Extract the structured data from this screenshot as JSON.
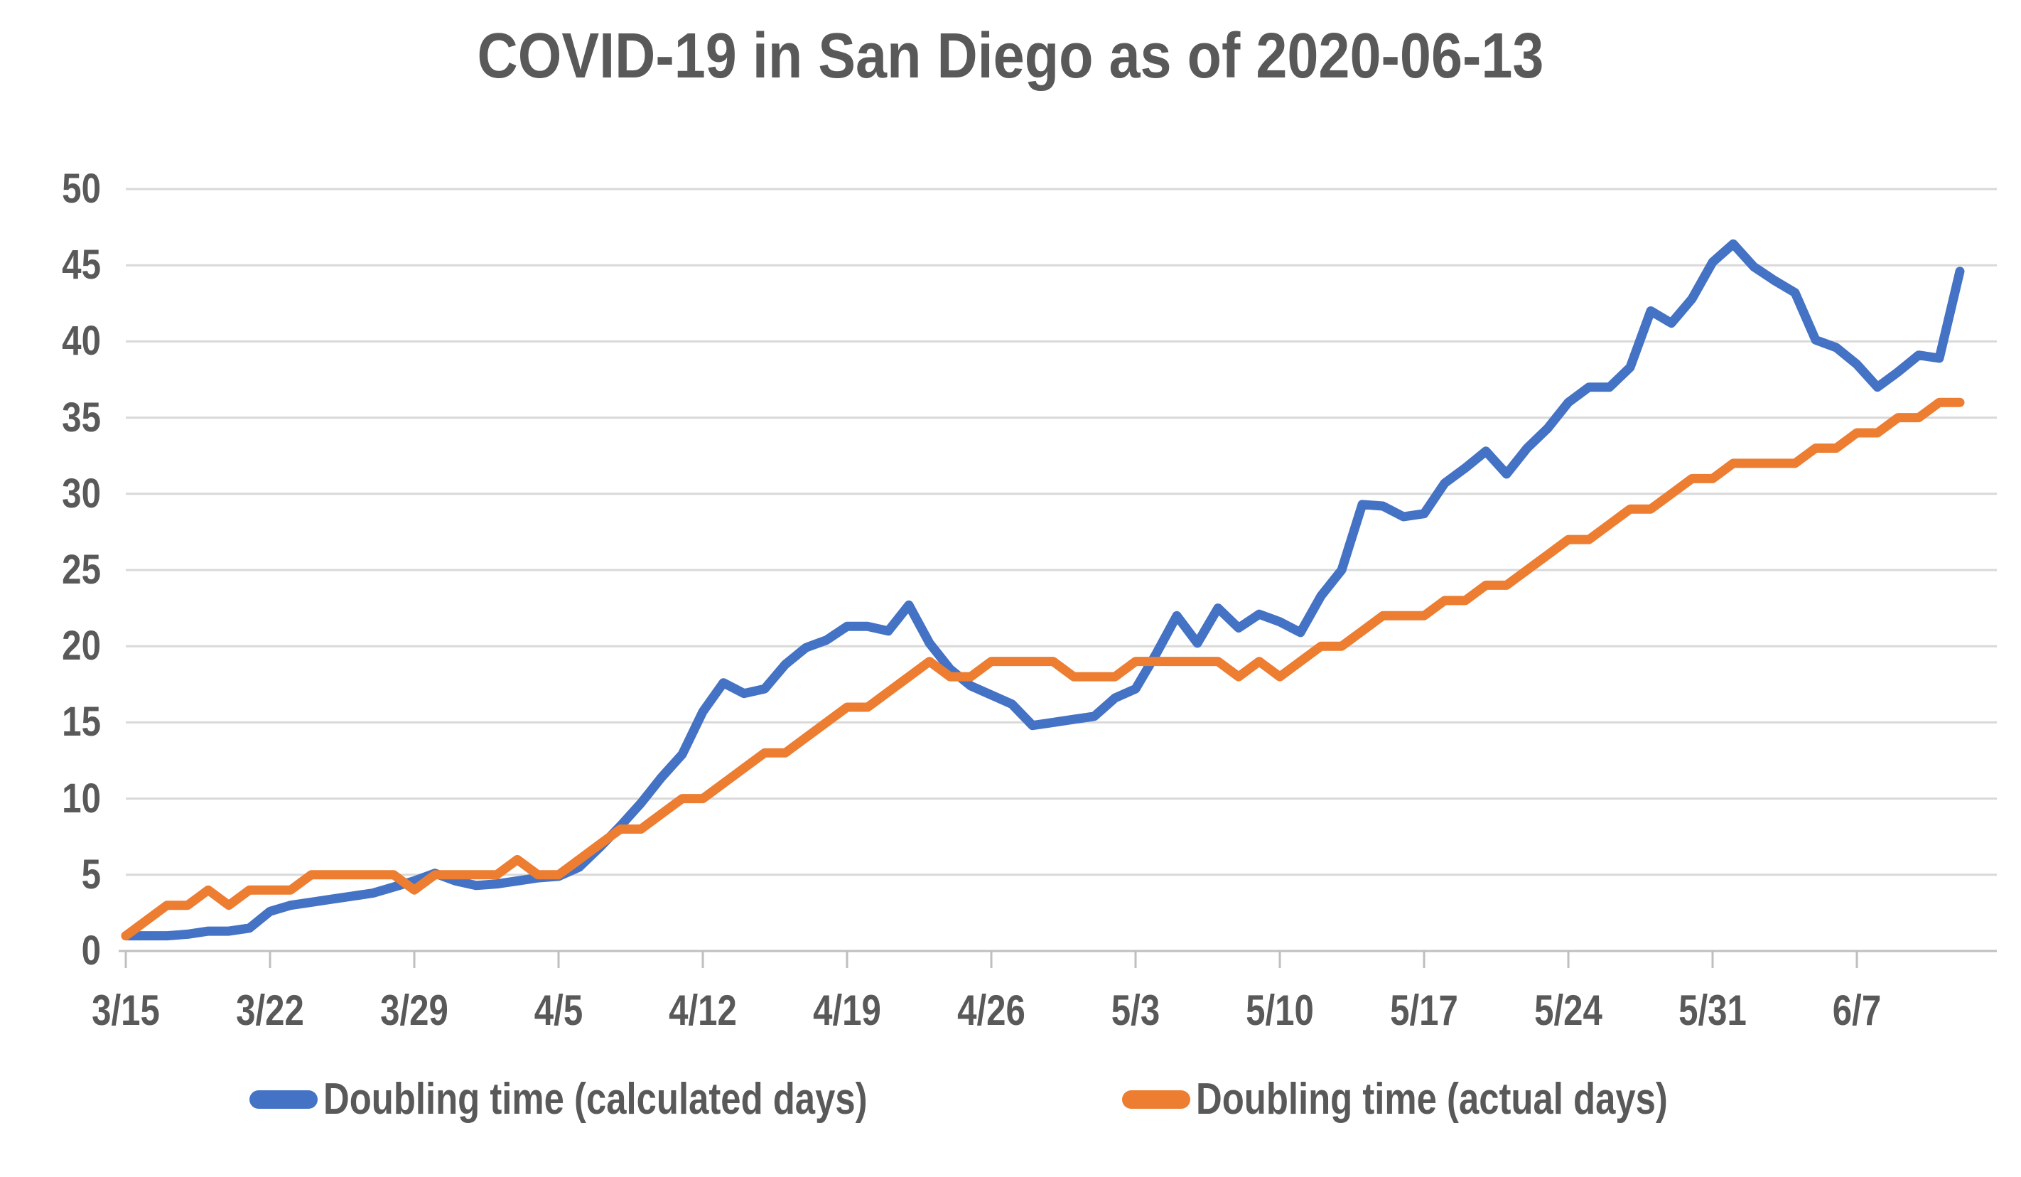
{
  "chart_data": {
    "type": "line",
    "title": "COVID-19 in San Diego as of 2020-06-13",
    "xlabel": "",
    "ylabel": "",
    "ylim": [
      0,
      50
    ],
    "y_ticks": [
      0,
      5,
      10,
      15,
      20,
      25,
      30,
      35,
      40,
      45,
      50
    ],
    "grid": "horizontal",
    "legend_position": "bottom",
    "x_tick_labels": [
      "3/15",
      "3/22",
      "3/29",
      "4/5",
      "4/12",
      "4/19",
      "4/26",
      "5/3",
      "5/10",
      "5/17",
      "5/24",
      "5/31",
      "6/7"
    ],
    "x": [
      "3/15",
      "3/16",
      "3/17",
      "3/18",
      "3/19",
      "3/20",
      "3/21",
      "3/22",
      "3/23",
      "3/24",
      "3/25",
      "3/26",
      "3/27",
      "3/28",
      "3/29",
      "3/30",
      "3/31",
      "4/1",
      "4/2",
      "4/3",
      "4/4",
      "4/5",
      "4/6",
      "4/7",
      "4/8",
      "4/9",
      "4/10",
      "4/11",
      "4/12",
      "4/13",
      "4/14",
      "4/15",
      "4/16",
      "4/17",
      "4/18",
      "4/19",
      "4/20",
      "4/21",
      "4/22",
      "4/23",
      "4/24",
      "4/25",
      "4/26",
      "4/27",
      "4/28",
      "4/29",
      "4/30",
      "5/1",
      "5/2",
      "5/3",
      "5/4",
      "5/5",
      "5/6",
      "5/7",
      "5/8",
      "5/9",
      "5/10",
      "5/11",
      "5/12",
      "5/13",
      "5/14",
      "5/15",
      "5/16",
      "5/17",
      "5/18",
      "5/19",
      "5/20",
      "5/21",
      "5/22",
      "5/23",
      "5/24",
      "5/25",
      "5/26",
      "5/27",
      "5/28",
      "5/29",
      "5/30",
      "5/31",
      "6/1",
      "6/2",
      "6/3",
      "6/4",
      "6/5",
      "6/6",
      "6/7",
      "6/8",
      "6/9",
      "6/10",
      "6/11",
      "6/12"
    ],
    "series": [
      {
        "name": "Doubling time (calculated days)",
        "color": "#4472C4",
        "values": [
          1.0,
          1.0,
          1.0,
          1.1,
          1.3,
          1.3,
          1.5,
          2.6,
          3.0,
          3.2,
          3.4,
          3.6,
          3.8,
          4.2,
          4.6,
          5.1,
          4.6,
          4.3,
          4.4,
          4.6,
          4.8,
          4.9,
          5.5,
          6.8,
          8.2,
          9.7,
          11.4,
          12.9,
          15.7,
          17.6,
          16.9,
          17.2,
          18.8,
          19.9,
          20.4,
          21.3,
          21.3,
          21.0,
          22.7,
          20.2,
          18.5,
          17.4,
          16.8,
          16.2,
          14.8,
          15.0,
          15.2,
          15.4,
          16.6,
          17.2,
          19.5,
          22.0,
          20.2,
          22.5,
          21.2,
          22.1,
          21.6,
          20.9,
          23.3,
          25.0,
          29.3,
          29.2,
          28.5,
          28.7,
          30.7,
          31.7,
          32.8,
          31.3,
          33.0,
          34.3,
          36.0,
          37.0,
          37.0,
          38.3,
          42.0,
          41.2,
          42.8,
          45.2,
          46.4,
          44.9,
          44.0,
          43.2,
          40.1,
          39.6,
          38.5,
          37.0,
          38.0,
          39.1,
          38.9,
          44.6
        ]
      },
      {
        "name": "Doubling time (actual days)",
        "color": "#ED7D31",
        "values": [
          1,
          2,
          3,
          3,
          4,
          3,
          4,
          4,
          4,
          5,
          5,
          5,
          5,
          5,
          4,
          5,
          5,
          5,
          5,
          6,
          5,
          5,
          6,
          7,
          8,
          8,
          9,
          10,
          10,
          11,
          12,
          13,
          13,
          14,
          15,
          16,
          16,
          17,
          18,
          19,
          18,
          18,
          19,
          19,
          19,
          19,
          18,
          18,
          18,
          19,
          19,
          19,
          19,
          19,
          18,
          19,
          18,
          19,
          20,
          20,
          21,
          22,
          22,
          22,
          23,
          23,
          24,
          24,
          25,
          26,
          27,
          27,
          28,
          29,
          29,
          30,
          31,
          31,
          32,
          32,
          32,
          32,
          33,
          33,
          34,
          34,
          35,
          35,
          36,
          36
        ]
      }
    ],
    "colors": {
      "gridline": "#D9D9D9",
      "axis_line": "#BFBFBF",
      "text": "#595959",
      "background": "#FFFFFF"
    }
  }
}
